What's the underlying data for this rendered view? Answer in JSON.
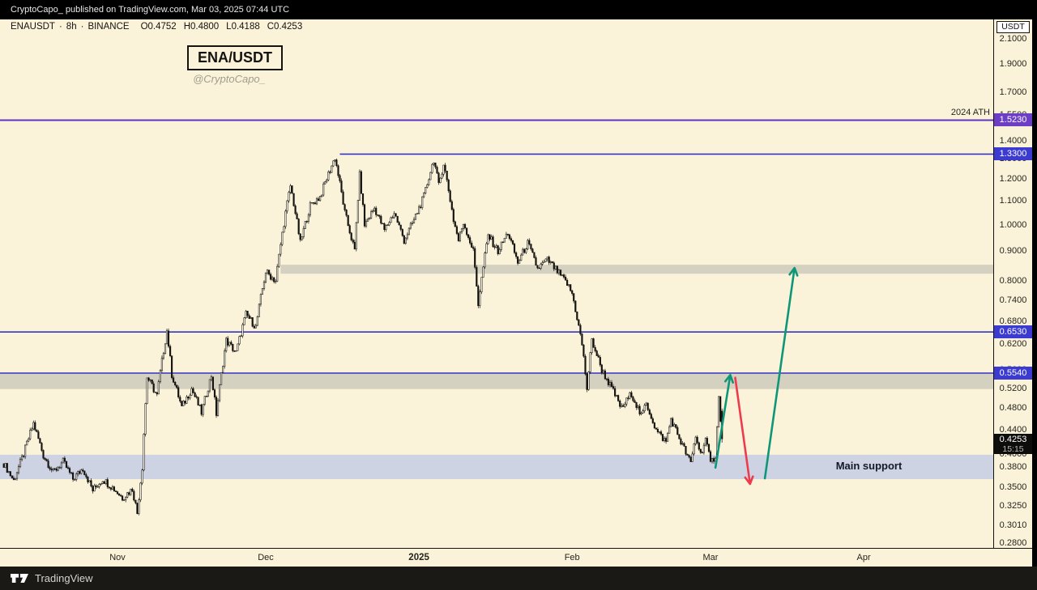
{
  "banner": {
    "text": "CryptoCapo_ published on TradingView.com, Mar 03, 2025 07:44 UTC"
  },
  "header": {
    "symbol": "ENAUSDT",
    "sep": "·",
    "timeframe": "8h",
    "exchange": "BINANCE",
    "o": "O0.4752",
    "h": "H0.4800",
    "l": "L0.4188",
    "c": "C0.4253"
  },
  "title_card": {
    "pair": "ENA/USDT",
    "handle": "@CryptoCapo_"
  },
  "annotations": {
    "ath_label": "2024 ATH",
    "main_support_label": "Main support"
  },
  "price_axis": {
    "unit": "USDT",
    "ticks": [
      "2.1000",
      "1.9000",
      "1.7000",
      "1.5500",
      "1.4000",
      "1.3000",
      "1.2000",
      "1.1000",
      "1.0000",
      "0.9000",
      "0.8000",
      "0.7400",
      "0.6800",
      "0.6200",
      "0.5600",
      "0.5200",
      "0.4800",
      "0.4400",
      "0.4000",
      "0.3800",
      "0.3500",
      "0.3250",
      "0.3010",
      "0.2800"
    ],
    "level_labels": [
      {
        "text": "1.5230",
        "price": 1.523,
        "bg": "#6c3ec6"
      },
      {
        "text": "1.3300",
        "price": 1.33,
        "bg": "#3b3bd1"
      },
      {
        "text": "0.6530",
        "price": 0.653,
        "bg": "#3b3bd1"
      },
      {
        "text": "0.5540",
        "price": 0.554,
        "bg": "#3b3bd1"
      }
    ],
    "last_price": {
      "text": "0.4253",
      "countdown": "15:15",
      "bg": "#0d0e0c"
    }
  },
  "time_axis": {
    "labels": [
      {
        "text": "Nov",
        "date": "2024-11-01",
        "bold": false
      },
      {
        "text": "Dec",
        "date": "2024-12-01",
        "bold": false
      },
      {
        "text": "2025",
        "date": "2025-01-01",
        "bold": true
      },
      {
        "text": "Feb",
        "date": "2025-02-01",
        "bold": false
      },
      {
        "text": "Mar",
        "date": "2025-03-01",
        "bold": false
      },
      {
        "text": "Apr",
        "date": "2025-04-01",
        "bold": false
      }
    ]
  },
  "footer": {
    "brand": "TradingView"
  },
  "chart_data": {
    "type": "candlestick",
    "title": "ENA/USDT",
    "subtitle": "@CryptoCapo_",
    "symbol": "ENAUSDT",
    "exchange": "BINANCE",
    "interval": "8h",
    "y_scale": "log",
    "ylim": [
      0.27,
      2.2
    ],
    "current_candle": {
      "open": 0.4752,
      "high": 0.48,
      "low": 0.4188,
      "close": 0.4253
    },
    "levels": [
      {
        "price": 1.523,
        "label": "2024 ATH",
        "color": "#5e34c0",
        "width": 2.0,
        "start": null
      },
      {
        "price": 1.33,
        "label": null,
        "color": "#3434c4",
        "width": 1.6,
        "start": "2024-12-16"
      },
      {
        "price": 0.653,
        "label": null,
        "color": "#3434c4",
        "width": 1.6,
        "start": null
      },
      {
        "price": 0.554,
        "label": null,
        "color": "#3434c4",
        "width": 1.6,
        "start": null
      }
    ],
    "zones": [
      {
        "name": "upper-resistance-zone",
        "price_min": 0.823,
        "price_max": 0.853,
        "start": "2024-12-04",
        "color": "#d5d1c0"
      },
      {
        "name": "lower-resistance-zone",
        "price_min": 0.519,
        "price_max": 0.554,
        "start": null,
        "color": "#d5d1c0"
      },
      {
        "name": "main-support-zone",
        "price_min": 0.362,
        "price_max": 0.399,
        "start": null,
        "color": "#cdd3e3"
      }
    ],
    "price_path": [
      [
        "2024-10-09",
        0.385
      ],
      [
        "2024-10-11",
        0.36
      ],
      [
        "2024-10-13",
        0.4
      ],
      [
        "2024-10-15",
        0.452
      ],
      [
        "2024-10-17",
        0.398
      ],
      [
        "2024-10-19",
        0.372
      ],
      [
        "2024-10-21",
        0.388
      ],
      [
        "2024-10-23",
        0.362
      ],
      [
        "2024-10-25",
        0.378
      ],
      [
        "2024-10-27",
        0.346
      ],
      [
        "2024-10-29",
        0.362
      ],
      [
        "2024-10-31",
        0.35
      ],
      [
        "2024-11-02",
        0.336
      ],
      [
        "2024-11-04",
        0.348
      ],
      [
        "2024-11-05",
        0.316
      ],
      [
        "2024-11-06",
        0.38
      ],
      [
        "2024-11-07",
        0.545
      ],
      [
        "2024-11-09",
        0.505
      ],
      [
        "2024-11-11",
        0.655
      ],
      [
        "2024-11-12",
        0.55
      ],
      [
        "2024-11-14",
        0.482
      ],
      [
        "2024-11-16",
        0.52
      ],
      [
        "2024-11-18",
        0.472
      ],
      [
        "2024-11-20",
        0.548
      ],
      [
        "2024-11-21",
        0.47
      ],
      [
        "2024-11-23",
        0.63
      ],
      [
        "2024-11-25",
        0.6
      ],
      [
        "2024-11-27",
        0.7
      ],
      [
        "2024-11-29",
        0.665
      ],
      [
        "2024-12-01",
        0.83
      ],
      [
        "2024-12-03",
        0.8
      ],
      [
        "2024-12-05",
        1.05
      ],
      [
        "2024-12-06",
        1.17
      ],
      [
        "2024-12-08",
        0.93
      ],
      [
        "2024-12-10",
        1.08
      ],
      [
        "2024-12-12",
        1.12
      ],
      [
        "2024-12-15",
        1.31
      ],
      [
        "2024-12-17",
        1.05
      ],
      [
        "2024-12-19",
        0.9
      ],
      [
        "2024-12-20",
        1.22
      ],
      [
        "2024-12-21",
        1.0
      ],
      [
        "2024-12-23",
        1.07
      ],
      [
        "2024-12-25",
        0.98
      ],
      [
        "2024-12-27",
        1.05
      ],
      [
        "2024-12-29",
        0.94
      ],
      [
        "2024-12-31",
        1.02
      ],
      [
        "2025-01-02",
        1.12
      ],
      [
        "2025-01-04",
        1.3
      ],
      [
        "2025-01-05",
        1.17
      ],
      [
        "2025-01-06",
        1.28
      ],
      [
        "2025-01-08",
        1.02
      ],
      [
        "2025-01-09",
        0.94
      ],
      [
        "2025-01-10",
        1.01
      ],
      [
        "2025-01-12",
        0.9
      ],
      [
        "2025-01-13",
        0.73
      ],
      [
        "2025-01-15",
        0.96
      ],
      [
        "2025-01-17",
        0.9
      ],
      [
        "2025-01-19",
        0.97
      ],
      [
        "2025-01-21",
        0.86
      ],
      [
        "2025-01-23",
        0.93
      ],
      [
        "2025-01-25",
        0.84
      ],
      [
        "2025-01-27",
        0.87
      ],
      [
        "2025-01-29",
        0.83
      ],
      [
        "2025-01-31",
        0.79
      ],
      [
        "2025-02-01",
        0.76
      ],
      [
        "2025-02-03",
        0.62
      ],
      [
        "2025-02-04",
        0.52
      ],
      [
        "2025-02-05",
        0.63
      ],
      [
        "2025-02-07",
        0.56
      ],
      [
        "2025-02-09",
        0.52
      ],
      [
        "2025-02-11",
        0.48
      ],
      [
        "2025-02-13",
        0.51
      ],
      [
        "2025-02-15",
        0.465
      ],
      [
        "2025-02-16",
        0.49
      ],
      [
        "2025-02-18",
        0.44
      ],
      [
        "2025-02-20",
        0.42
      ],
      [
        "2025-02-21",
        0.46
      ],
      [
        "2025-02-23",
        0.42
      ],
      [
        "2025-02-25",
        0.385
      ],
      [
        "2025-02-26",
        0.43
      ],
      [
        "2025-02-27",
        0.4
      ],
      [
        "2025-02-28",
        0.425
      ],
      [
        "2025-03-01",
        0.385
      ],
      [
        "2025-03-02T00:00Z",
        0.398
      ],
      [
        "2025-03-02T16:00Z",
        0.5
      ],
      [
        "2025-03-03T08:00Z",
        0.4253
      ]
    ],
    "arrows": [
      {
        "name": "bounce-up-arrow",
        "from": [
          "2025-03-02",
          0.379
        ],
        "to": [
          "2025-03-05",
          0.549
        ],
        "color": "#0e9678"
      },
      {
        "name": "retest-down-arrow",
        "from": [
          "2025-03-06",
          0.543
        ],
        "to": [
          "2025-03-09",
          0.355
        ],
        "color": "#ee3a4d"
      },
      {
        "name": "projection-up-arrow",
        "from": [
          "2025-03-12",
          0.363
        ],
        "to": [
          "2025-03-18",
          0.842
        ],
        "color": "#0e9678"
      }
    ]
  }
}
